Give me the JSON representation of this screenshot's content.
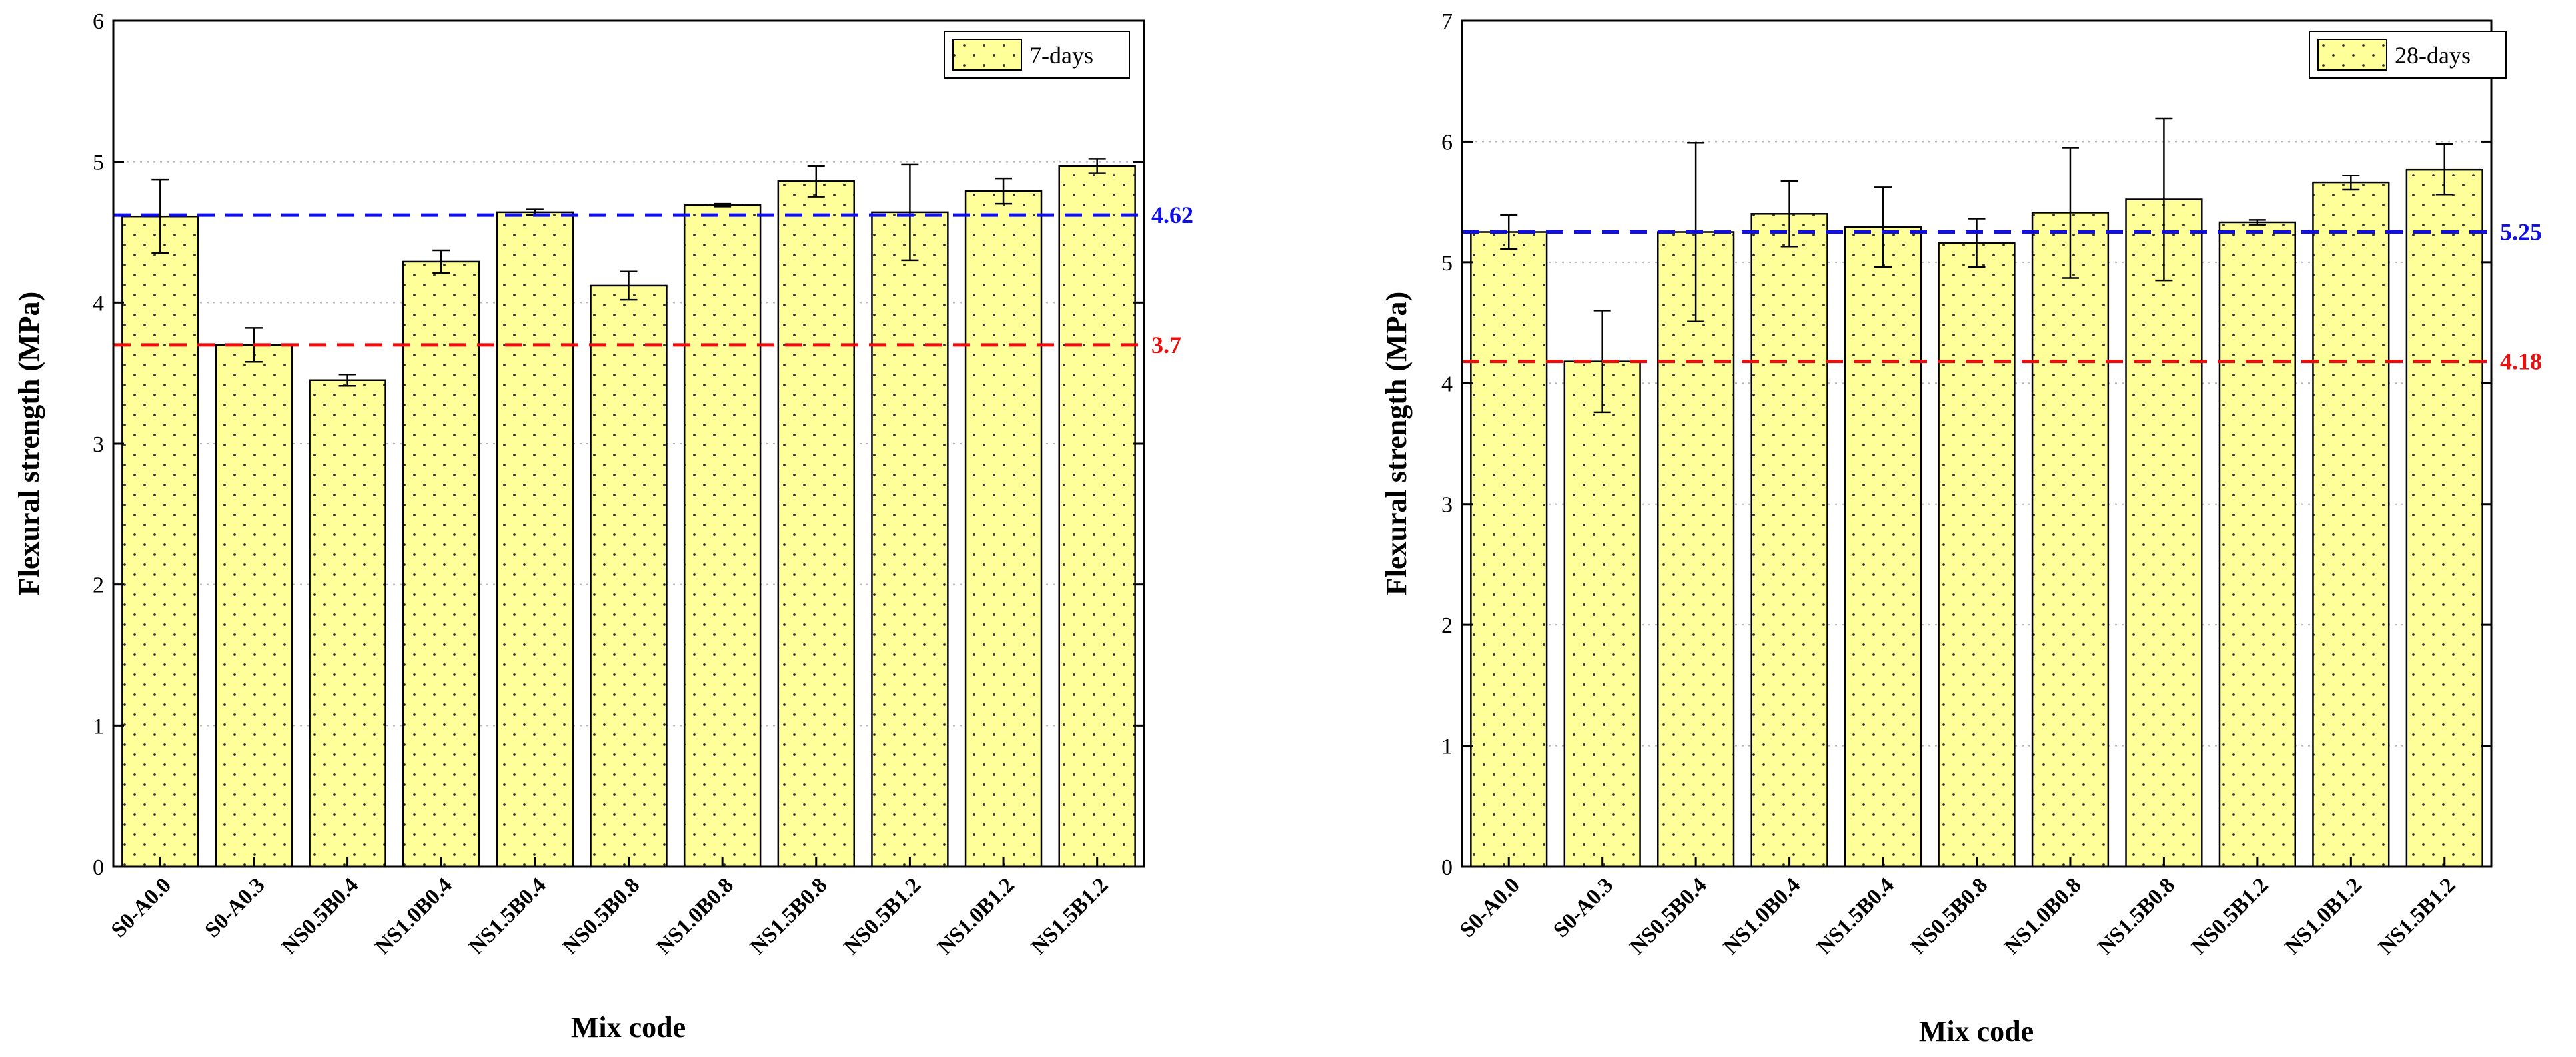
{
  "chart_data": [
    {
      "type": "bar",
      "title": "",
      "legend": "7-days",
      "legend_position": "top-right",
      "xlabel": "Mix code",
      "ylabel": "Flexural strength (MPa)",
      "ylim": [
        0,
        6
      ],
      "yticks": [
        "0",
        "1",
        "2",
        "3",
        "4",
        "5",
        "6"
      ],
      "grid": "dotted horizontal",
      "categories": [
        "S0-A0.0",
        "S0-A0.3",
        "NS0.5B0.4",
        "NS1.0B0.4",
        "NS1.5B0.4",
        "NS0.5B0.8",
        "NS1.0B0.8",
        "NS1.5B0.8",
        "NS0.5B1.2",
        "NS1.0B1.2",
        "NS1.5B1.2"
      ],
      "values": [
        4.61,
        3.7,
        3.45,
        4.29,
        4.64,
        4.12,
        4.69,
        4.86,
        4.64,
        4.79,
        4.97
      ],
      "errors": [
        0.26,
        0.12,
        0.04,
        0.08,
        0.02,
        0.1,
        0.01,
        0.11,
        0.34,
        0.09,
        0.05
      ],
      "ref_lines": [
        {
          "value": 4.62,
          "label": "4.62",
          "color": "#1010e6"
        },
        {
          "value": 3.7,
          "label": "3.7",
          "color": "#e61010"
        }
      ]
    },
    {
      "type": "bar",
      "title": "",
      "legend": "28-days",
      "legend_position": "top-right",
      "xlabel": "Mix code",
      "ylabel": "Flexural strength (MPa)",
      "ylim": [
        0,
        7
      ],
      "yticks": [
        "0",
        "1",
        "2",
        "3",
        "4",
        "5",
        "6",
        "7"
      ],
      "grid": "dotted horizontal",
      "categories": [
        "S0-A0.0",
        "S0-A0.3",
        "NS0.5B0.4",
        "NS1.0B0.4",
        "NS1.5B0.4",
        "NS0.5B0.8",
        "NS1.0B0.8",
        "NS1.5B0.8",
        "NS0.5B1.2",
        "NS1.0B1.2",
        "NS1.5B1.2"
      ],
      "values": [
        5.25,
        4.18,
        5.25,
        5.4,
        5.29,
        5.16,
        5.41,
        5.52,
        5.33,
        5.66,
        5.77
      ],
      "errors": [
        0.14,
        0.42,
        0.74,
        0.27,
        0.33,
        0.2,
        0.54,
        0.67,
        0.02,
        0.06,
        0.21
      ],
      "ref_lines": [
        {
          "value": 5.25,
          "label": "5.25",
          "color": "#1010e6"
        },
        {
          "value": 4.18,
          "label": "4.18",
          "color": "#e61010"
        }
      ]
    }
  ],
  "style": {
    "bar_fill": "#ffff9a",
    "bar_dot": "#333333",
    "grid_color": "#b5b5b5"
  }
}
